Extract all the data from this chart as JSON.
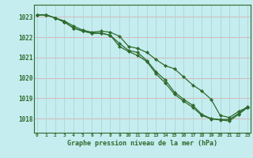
{
  "title": "Graphe pression niveau de la mer (hPa)",
  "background_color": "#c5ecee",
  "grid_color": "#a8d8d8",
  "line_color": "#2d6b2d",
  "marker_color": "#2d6b2d",
  "x_ticks": [
    0,
    1,
    2,
    3,
    4,
    5,
    6,
    7,
    8,
    9,
    10,
    11,
    12,
    13,
    14,
    15,
    16,
    17,
    18,
    19,
    20,
    21,
    22,
    23
  ],
  "y_ticks": [
    1018,
    1019,
    1020,
    1021,
    1022,
    1023
  ],
  "ylim": [
    1017.3,
    1023.6
  ],
  "xlim": [
    -0.3,
    23.3
  ],
  "series1": [
    1023.1,
    1023.1,
    1022.95,
    1022.8,
    1022.55,
    1022.35,
    1022.25,
    1022.3,
    1022.25,
    1022.05,
    1021.55,
    1021.45,
    1021.25,
    1020.9,
    1020.6,
    1020.45,
    1020.05,
    1019.65,
    1019.35,
    1018.95,
    1018.15,
    1018.05,
    1018.35,
    1018.55
  ],
  "series2": [
    1023.1,
    1023.1,
    1022.95,
    1022.75,
    1022.45,
    1022.3,
    1022.2,
    1022.2,
    1022.1,
    1021.7,
    1021.35,
    1021.25,
    1020.85,
    1020.3,
    1019.9,
    1019.3,
    1018.95,
    1018.65,
    1018.2,
    1018.0,
    1017.95,
    1017.95,
    1018.25,
    1018.6
  ],
  "series3": [
    1023.1,
    1023.1,
    1022.95,
    1022.75,
    1022.45,
    1022.3,
    1022.2,
    1022.2,
    1022.1,
    1021.55,
    1021.3,
    1021.1,
    1020.8,
    1020.2,
    1019.75,
    1019.2,
    1018.85,
    1018.55,
    1018.15,
    1017.98,
    1017.93,
    1017.88,
    1018.2,
    1018.55
  ]
}
